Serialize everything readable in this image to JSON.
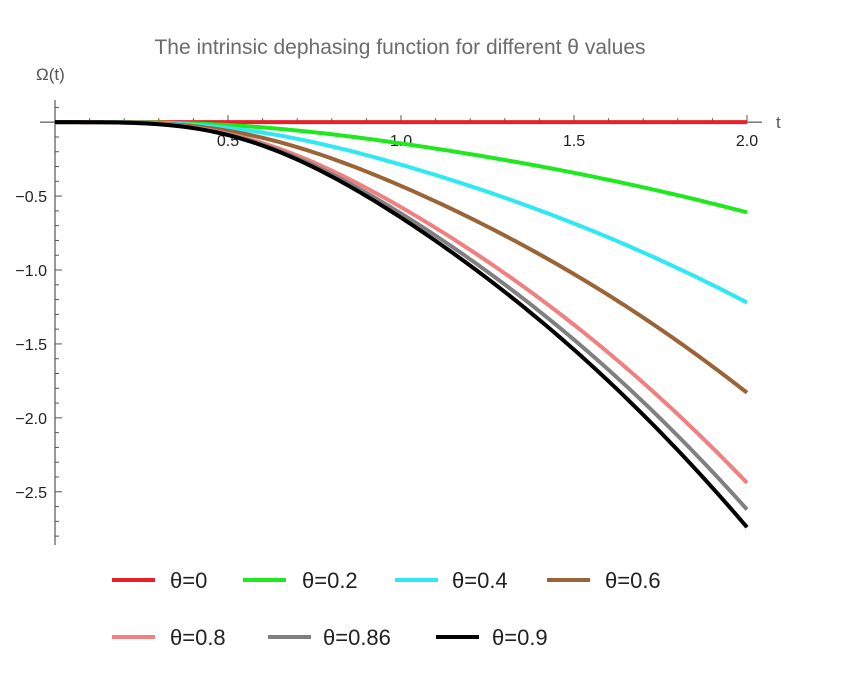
{
  "chart_data": {
    "type": "line",
    "title": "The intrinsic dephasing function for different θ values",
    "xlabel": "t",
    "ylabel": "Ω(t)",
    "xlim": [
      0,
      2.0
    ],
    "ylim": [
      -2.86,
      0.15
    ],
    "x_ticks": [
      0.5,
      1.0,
      1.5,
      2.0
    ],
    "x_tick_labels": [
      "0.5",
      "1.0",
      "1.5",
      "2.0"
    ],
    "y_ticks": [
      -0.5,
      -1.0,
      -1.5,
      -2.0,
      -2.5
    ],
    "y_tick_labels": [
      "−0.5",
      "−1.0",
      "−1.5",
      "−2.0",
      "−2.5"
    ],
    "legend_position": "bottom",
    "series": [
      {
        "name": "θ=0",
        "color": "#e8202a",
        "theta": 0,
        "end_value": 0.0
      },
      {
        "name": "θ=0.2",
        "color": "#1ee81e",
        "theta": 0.2,
        "end_value": -0.61
      },
      {
        "name": "θ=0.4",
        "color": "#2ee8f2",
        "theta": 0.4,
        "end_value": -1.22
      },
      {
        "name": "θ=0.6",
        "color": "#9a6436",
        "theta": 0.6,
        "end_value": -1.83
      },
      {
        "name": "θ=0.8",
        "color": "#f08080",
        "theta": 0.8,
        "end_value": -2.44
      },
      {
        "name": "θ=0.86",
        "color": "#808080",
        "theta": 0.86,
        "end_value": -2.62
      },
      {
        "name": "θ=0.9",
        "color": "#000000",
        "theta": 0.9,
        "end_value": -2.74
      }
    ]
  }
}
